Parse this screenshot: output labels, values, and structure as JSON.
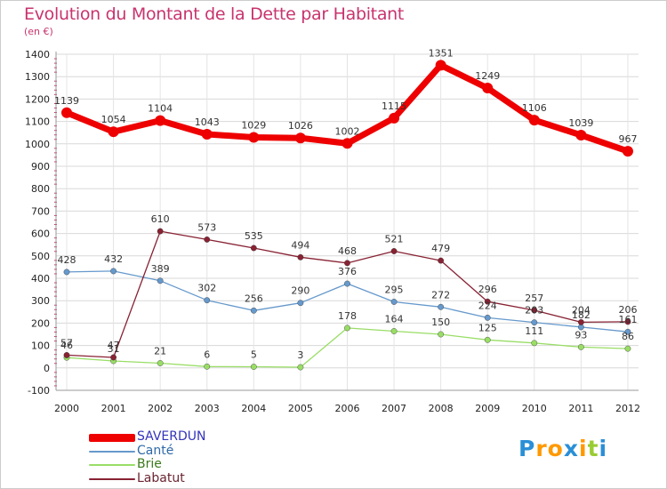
{
  "title": "Evolution du Montant de la Dette par Habitant",
  "subtitle": "(en €)",
  "chart_data": {
    "type": "line",
    "title": "Evolution du Montant de la Dette par Habitant",
    "subtitle": "(en €)",
    "x": [
      "2000",
      "2001",
      "2002",
      "2003",
      "2004",
      "2005",
      "2006",
      "2007",
      "2008",
      "2009",
      "2010",
      "2011",
      "2012"
    ],
    "ylim": [
      -100,
      1400
    ],
    "yticks": [
      -100,
      0,
      100,
      200,
      300,
      400,
      500,
      600,
      700,
      800,
      900,
      1000,
      1100,
      1200,
      1300,
      1400
    ],
    "grid": true,
    "legend_position": "bottom-left",
    "series": [
      {
        "name": "SAVERDUN",
        "color": "#ee0000",
        "values": [
          1139,
          1054,
          1104,
          1043,
          1029,
          1026,
          1002,
          1115,
          1351,
          1249,
          1106,
          1039,
          967
        ]
      },
      {
        "name": "Canté",
        "color": "#6699cc",
        "values": [
          428,
          432,
          389,
          302,
          256,
          290,
          376,
          295,
          272,
          224,
          203,
          182,
          161
        ]
      },
      {
        "name": "Brie",
        "color": "#99dd66",
        "values": [
          46,
          31,
          21,
          6,
          5,
          3,
          178,
          164,
          150,
          125,
          111,
          93,
          86
        ]
      },
      {
        "name": "Labatut",
        "color": "#882233",
        "values": [
          57,
          47,
          610,
          573,
          535,
          494,
          468,
          521,
          479,
          296,
          257,
          204,
          206
        ]
      }
    ]
  },
  "logo_text": "Proxiti",
  "logo_colors": [
    "#2a8fd6",
    "#ff9900",
    "#ff9900",
    "#2a8fd6",
    "#ff9900",
    "#99cc33",
    "#2a8fd6"
  ]
}
